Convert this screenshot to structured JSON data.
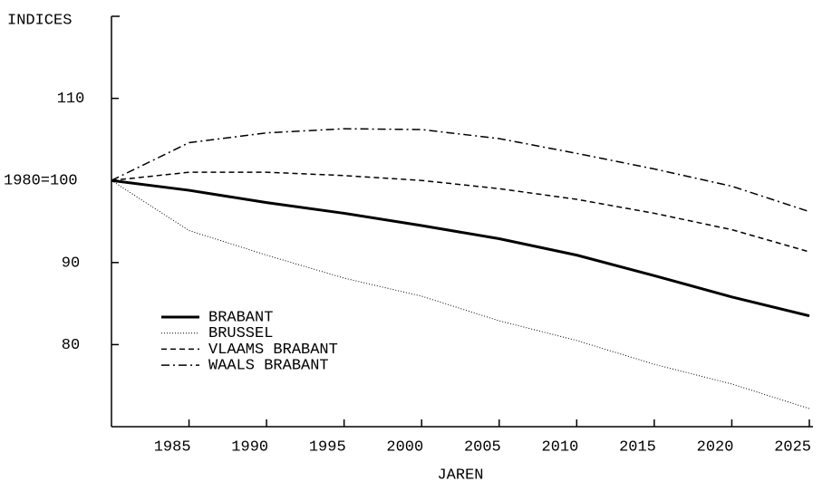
{
  "chart_data": {
    "type": "line",
    "y_label": "INDICES",
    "x_label": "JAREN",
    "x": [
      1980,
      1985,
      1990,
      1995,
      2000,
      2005,
      2010,
      2015,
      2020,
      2025
    ],
    "series": [
      {
        "name": "BRABANT",
        "color": "#000000",
        "style": "solid-thick",
        "values": [
          100,
          98.8,
          97.3,
          96.0,
          94.5,
          92.9,
          90.9,
          88.4,
          85.8,
          83.5
        ]
      },
      {
        "name": "BRUSSEL",
        "color": "#000000",
        "style": "dotted",
        "values": [
          100,
          93.9,
          90.9,
          88.1,
          85.9,
          82.9,
          80.5,
          77.6,
          75.2,
          72.2
        ]
      },
      {
        "name": "VLAAMS BRABANT",
        "color": "#000000",
        "style": "dashed",
        "values": [
          100,
          101,
          101,
          100.6,
          100,
          99,
          97.7,
          96,
          94,
          91.3
        ]
      },
      {
        "name": "WAALS BRABANT",
        "color": "#000000",
        "style": "dash-dot",
        "values": [
          100,
          104.6,
          105.8,
          106.3,
          106.2,
          105.1,
          103.3,
          101.4,
          99.3,
          96.2
        ]
      }
    ],
    "xlim": [
      1980,
      2025
    ],
    "xticks": [
      1985,
      1990,
      1995,
      2000,
      2005,
      2010,
      2015,
      2020,
      2025
    ],
    "ylim": [
      70,
      120
    ],
    "yticks": [
      80,
      90,
      {
        "value": 100,
        "label": "1980=100"
      },
      110
    ],
    "legend": "lower left",
    "grid": false
  }
}
